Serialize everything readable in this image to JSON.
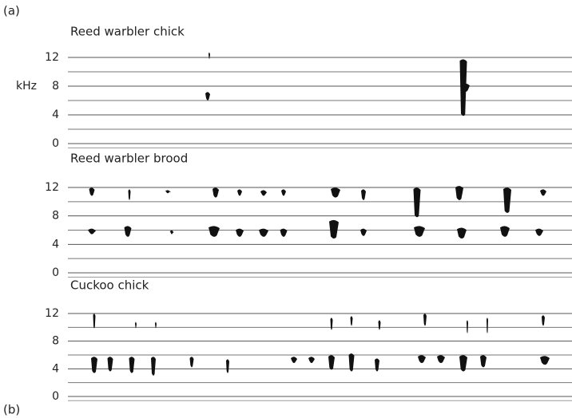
{
  "figure_labels": [
    "(a)",
    "(b)"
  ],
  "chart_data": [
    {
      "type": "spectrogram",
      "title": "Reed warbler chick",
      "ylabel": "kHz",
      "ylim": [
        0,
        12
      ],
      "yticks": [
        0,
        4,
        8,
        12
      ]
    },
    {
      "type": "spectrogram",
      "title": "Reed warbler brood",
      "ylim": [
        0,
        12
      ],
      "yticks": [
        0,
        4,
        8,
        12
      ]
    },
    {
      "type": "spectrogram",
      "title": "Cuckoo chick",
      "ylim": [
        0,
        12
      ],
      "yticks": [
        0,
        4,
        8,
        12
      ]
    }
  ]
}
